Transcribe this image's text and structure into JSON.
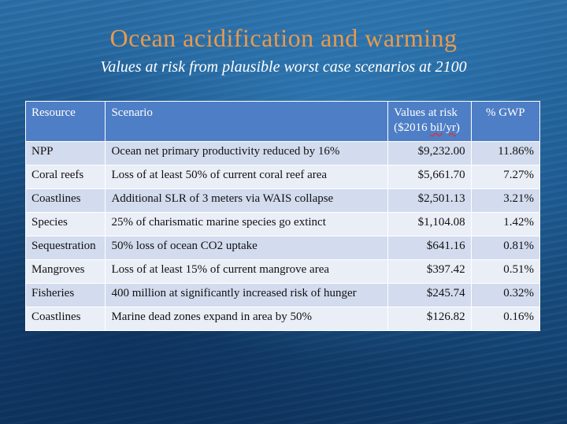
{
  "slide": {
    "title": "Ocean acidification and warming",
    "subtitle": "Values at risk from plausible worst case scenarios at 2100"
  },
  "table": {
    "headers": {
      "resource": "Resource",
      "scenario": "Scenario",
      "value_line1": "Values at risk",
      "value_line2_pre": "($2016 ",
      "value_line2_bil": "bil",
      "value_line2_sep": "/",
      "value_line2_yr": "yr",
      "value_line2_post": ")",
      "pct": "% GWP"
    },
    "rows": [
      {
        "resource": "NPP",
        "scenario": "Ocean net primary productivity reduced by 16%",
        "value": "$9,232.00",
        "pct": "11.86%"
      },
      {
        "resource": "Coral reefs",
        "scenario": "Loss of at least 50% of current coral reef area",
        "value": "$5,661.70",
        "pct": "7.27%"
      },
      {
        "resource": "Coastlines",
        "scenario": "Additional SLR of 3 meters via WAIS collapse",
        "value": "$2,501.13",
        "pct": "3.21%"
      },
      {
        "resource": "Species",
        "scenario": "25% of charismatic marine species go extinct",
        "value": "$1,104.08",
        "pct": "1.42%"
      },
      {
        "resource": "Sequestration",
        "scenario": "50% loss of ocean CO2 uptake",
        "value": "$641.16",
        "pct": "0.81%"
      },
      {
        "resource": "Mangroves",
        "scenario": "Loss of at least 15% of current mangrove area",
        "value": "$397.42",
        "pct": "0.51%"
      },
      {
        "resource": "Fisheries",
        "scenario": "400 million at significantly increased risk of hunger",
        "value": "$245.74",
        "pct": "0.32%"
      },
      {
        "resource": "Coastlines",
        "scenario": "Marine dead zones expand in area by 50%",
        "value": "$126.82",
        "pct": "0.16%"
      }
    ]
  }
}
